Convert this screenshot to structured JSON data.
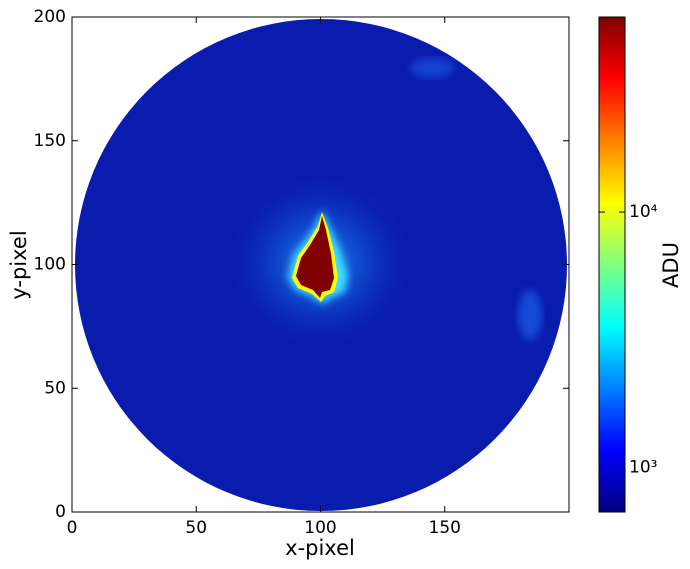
{
  "chart_data": {
    "type": "image",
    "xlabel": "x-pixel",
    "ylabel": "y-pixel",
    "xlim": [
      0,
      200
    ],
    "ylim": [
      0,
      200
    ],
    "xticks": [
      0,
      50,
      100,
      150
    ],
    "yticks": [
      0,
      50,
      100,
      150,
      200
    ],
    "colorbar": {
      "label": "ADU",
      "log": true,
      "lim": [
        670,
        58000
      ],
      "ticks": [
        {
          "value": 1000,
          "label": "10³"
        },
        {
          "value": 10000,
          "label": "10⁴"
        }
      ]
    }
  }
}
